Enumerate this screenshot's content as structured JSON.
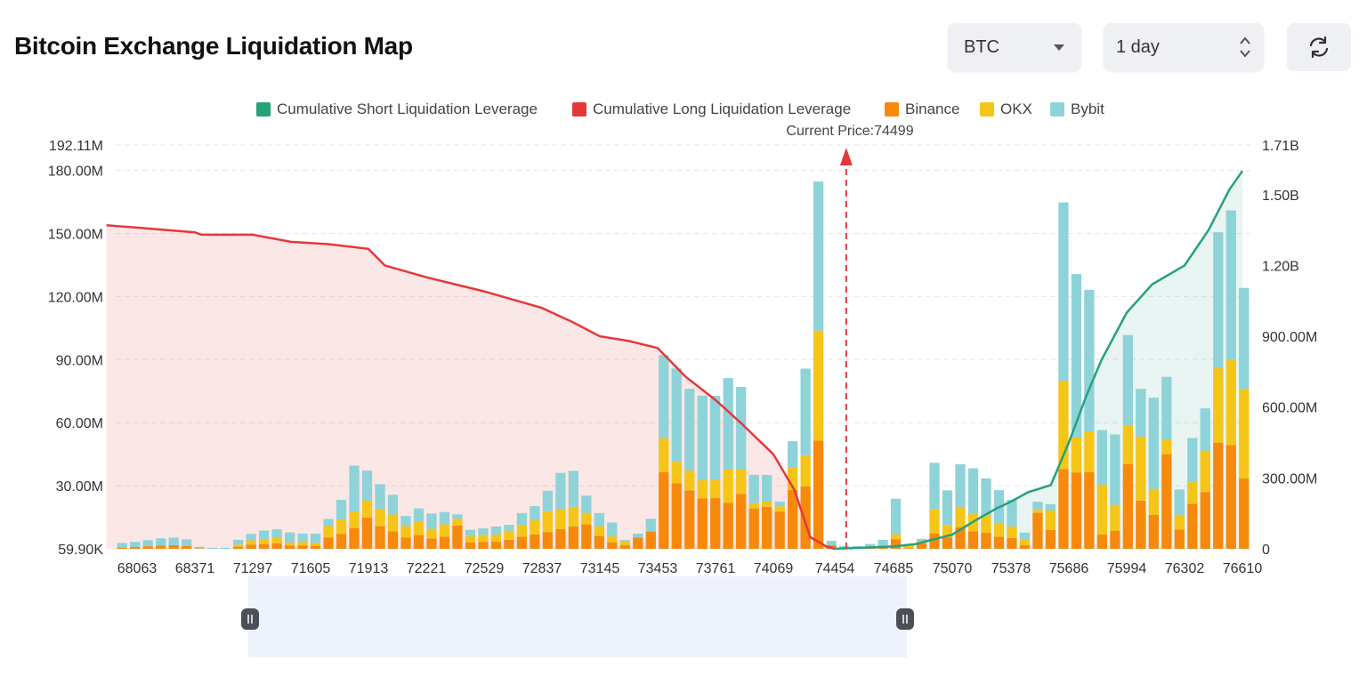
{
  "header": {
    "title": "Bitcoin Exchange Liquidation Map",
    "coin_select": {
      "value": "BTC",
      "icon": "caret-down-icon"
    },
    "range_select": {
      "value": "1 day",
      "icon": "updown-chevron-icon"
    },
    "refresh_button": {
      "icon": "refresh-icon"
    }
  },
  "chart_data": {
    "type": "bar",
    "current_price_label": "Current Price:74499",
    "current_price": 74499,
    "legend": [
      {
        "name": "Cumulative Short Liquidation Leverage",
        "color": "#26a17b"
      },
      {
        "name": "Cumulative Long Liquidation Leverage",
        "color": "#e5383b"
      },
      {
        "name": "Binance",
        "color": "#f7890c"
      },
      {
        "name": "OKX",
        "color": "#f5c518"
      },
      {
        "name": "Bybit",
        "color": "#8ed3d8"
      }
    ],
    "x_tick_labels": [
      "68063",
      "68371",
      "71297",
      "71605",
      "71913",
      "72221",
      "72529",
      "72837",
      "73145",
      "73453",
      "73761",
      "74069",
      "74454",
      "74685",
      "75070",
      "75378",
      "75686",
      "75994",
      "76302",
      "76610"
    ],
    "left_axis": {
      "min": 59900,
      "max": 192110000,
      "ticks": [
        "59.90K",
        "30.00M",
        "60.00M",
        "90.00M",
        "120.00M",
        "150.00M",
        "180.00M",
        "192.11M"
      ]
    },
    "right_axis": {
      "min": 0,
      "max": 1710000000,
      "ticks": [
        "0",
        "300.00M",
        "600.00M",
        "900.00M",
        "1.20B",
        "1.50B",
        "1.71B"
      ]
    },
    "bars": {
      "binance": [
        0.6,
        0.9,
        1.2,
        1.5,
        1.7,
        1.4,
        0.3,
        0,
        0,
        1.0,
        2.0,
        2.2,
        2.6,
        1.5,
        1.6,
        1.4,
        5.4,
        7.0,
        9.9,
        14.8,
        10.7,
        8.3,
        5.4,
        6.6,
        4.9,
        5.8,
        11.1,
        3.0,
        3.3,
        3.4,
        4.3,
        5.7,
        6.8,
        7.9,
        9.3,
        10.7,
        11.6,
        6.2,
        3.1,
        1.7,
        5.3,
        8.2,
        36.5,
        31.2,
        27.8,
        23.9,
        24.1,
        21.9,
        26.1,
        19.2,
        20.0,
        17.7,
        28.0,
        29.7,
        51.4,
        1.7,
        0.3,
        0.3,
        0.9,
        1.4,
        4.6,
        0.3,
        2.5,
        7.3,
        5.4,
        10.3,
        8.3,
        7.6,
        5.8,
        5.1,
        1.7,
        17.1,
        9.0,
        37.9,
        36.3,
        36.5,
        6.8,
        8.6,
        40.3,
        22.9,
        16.1,
        45.0,
        9.2,
        21.4,
        27.0,
        50.5,
        49.3,
        33.4
      ],
      "okx": [
        0,
        0,
        0,
        0,
        0,
        0,
        0,
        0,
        0,
        1.0,
        2.0,
        2.2,
        2.6,
        1.5,
        1.6,
        1.4,
        5.4,
        7.0,
        7.9,
        8.2,
        8.1,
        8.0,
        5.4,
        6.6,
        4.6,
        5.8,
        3.2,
        3.0,
        3.3,
        3.4,
        4.3,
        5.7,
        6.8,
        10.0,
        9.3,
        9.3,
        5.5,
        4.5,
        2.8,
        1.9,
        0,
        0,
        16.1,
        10.2,
        9.5,
        8.8,
        8.8,
        15.8,
        11.6,
        2.5,
        2.4,
        2.5,
        10.5,
        14.8,
        52.4,
        0,
        0,
        0,
        0,
        0,
        2.3,
        1.0,
        1.1,
        11.4,
        5.9,
        9.7,
        8.4,
        8.5,
        6.1,
        5.5,
        2.6,
        1.4,
        9.2,
        42.1,
        16.6,
        19.2,
        23.6,
        12.3,
        18.6,
        30.5,
        12.4,
        7.0,
        7.0,
        10.3,
        19.7,
        35.4,
        40.5,
        42.6
      ],
      "bybit": [
        2.2,
        2.4,
        2.9,
        3.5,
        3.6,
        3.1,
        0.7,
        0.5,
        0.5,
        2.3,
        3.1,
        4.3,
        4.1,
        4.8,
        4.0,
        4.4,
        3.4,
        9.3,
        21.8,
        14.2,
        11.9,
        9.4,
        4.8,
        6.0,
        7.3,
        5.9,
        2.1,
        3.0,
        3.1,
        3.8,
        2.8,
        5.6,
        6.7,
        9.7,
        17.5,
        17.1,
        8.2,
        6.3,
        6.6,
        0.6,
        1.9,
        6.1,
        39.6,
        44.4,
        38.8,
        40.2,
        39.9,
        43.5,
        39.3,
        13.5,
        12.7,
        2.3,
        12.7,
        41.2,
        70.9,
        2.1,
        1.0,
        1.0,
        1.4,
        2.9,
        16.9,
        0.5,
        1.1,
        22.2,
        16.5,
        20.2,
        21.6,
        17.4,
        16.0,
        12.7,
        3.4,
        3.9,
        3.0,
        84.8,
        77.8,
        67.5,
        26.1,
        33.5,
        42.8,
        22.7,
        43.4,
        29.8,
        12.0,
        21.0,
        20.1,
        64.7,
        71.2,
        48.1
      ]
    },
    "short_cumulative_B": [
      [
        74450,
        0
      ],
      [
        74685,
        0.01
      ],
      [
        74830,
        0.02
      ],
      [
        74950,
        0.04
      ],
      [
        75070,
        0.06
      ],
      [
        75190,
        0.12
      ],
      [
        75300,
        0.17
      ],
      [
        75378,
        0.2
      ],
      [
        75470,
        0.24
      ],
      [
        75590,
        0.27
      ],
      [
        75686,
        0.45
      ],
      [
        75780,
        0.65
      ],
      [
        75860,
        0.8
      ],
      [
        75994,
        1.0
      ],
      [
        76130,
        1.12
      ],
      [
        76302,
        1.2
      ],
      [
        76430,
        1.35
      ],
      [
        76540,
        1.52
      ],
      [
        76610,
        1.6
      ]
    ],
    "long_cumulative_B": [
      [
        67900,
        1.37
      ],
      [
        68063,
        1.36
      ],
      [
        68371,
        1.34
      ],
      [
        68700,
        1.33
      ],
      [
        71297,
        1.33
      ],
      [
        71500,
        1.3
      ],
      [
        71700,
        1.29
      ],
      [
        71913,
        1.27
      ],
      [
        72000,
        1.2
      ],
      [
        72221,
        1.15
      ],
      [
        72529,
        1.09
      ],
      [
        72837,
        1.02
      ],
      [
        73000,
        0.96
      ],
      [
        73145,
        0.9
      ],
      [
        73300,
        0.88
      ],
      [
        73453,
        0.85
      ],
      [
        73600,
        0.73
      ],
      [
        73761,
        0.63
      ],
      [
        73900,
        0.53
      ],
      [
        74069,
        0.4
      ],
      [
        74200,
        0.25
      ],
      [
        74300,
        0.05
      ],
      [
        74400,
        0.01
      ],
      [
        74454,
        0
      ]
    ]
  }
}
